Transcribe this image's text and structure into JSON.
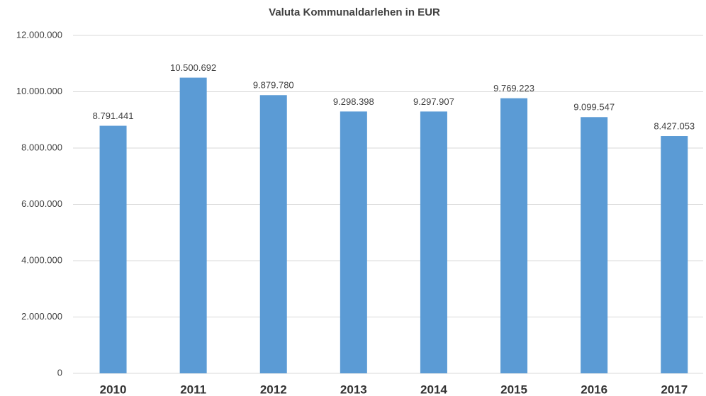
{
  "chart_data": {
    "type": "bar",
    "title": "Valuta Kommunaldarlehen in EUR",
    "categories": [
      "2010",
      "2011",
      "2012",
      "2013",
      "2014",
      "2015",
      "2016",
      "2017"
    ],
    "values": [
      8791441,
      10500692,
      9879780,
      9298398,
      9297907,
      9769223,
      9099547,
      8427053
    ],
    "value_labels": [
      "8.791.441",
      "10.500.692",
      "9.879.780",
      "9.298.398",
      "9.297.907",
      "9.769.223",
      "9.099.547",
      "8.427.053"
    ],
    "color": "#5b9bd5",
    "ylim": [
      0,
      12000000
    ],
    "yticks": [
      0,
      {
        "value": 2000000,
        "label": "2.000.000"
      },
      {
        "value": 4000000,
        "label": "4.000.000"
      },
      {
        "value": 6000000,
        "label": "6.000.000"
      },
      {
        "value": 8000000,
        "label": "8.000.000"
      },
      {
        "value": 10000000,
        "label": "10.000.000"
      },
      {
        "value": 12000000,
        "label": "12.000.000"
      }
    ],
    "grid": true
  }
}
